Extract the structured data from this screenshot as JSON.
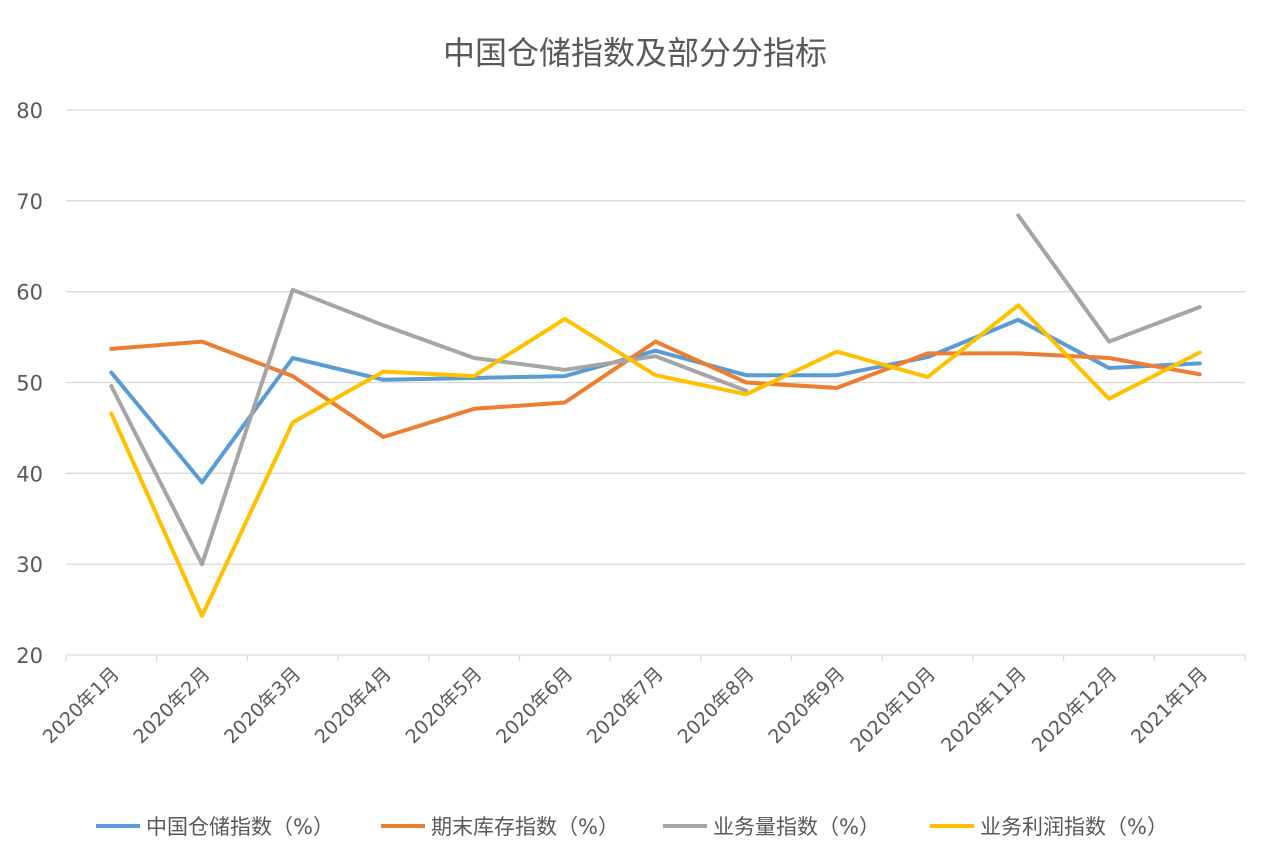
{
  "chart_data": {
    "type": "line",
    "title": "中国仓储指数及部分分指标",
    "xlabel": "",
    "ylabel": "",
    "ylim": [
      20,
      80
    ],
    "yticks": [
      20,
      30,
      40,
      50,
      60,
      70,
      80
    ],
    "grid": true,
    "legend_position": "bottom",
    "categories": [
      "2020年1月",
      "2020年2月",
      "2020年3月",
      "2020年4月",
      "2020年5月",
      "2020年6月",
      "2020年7月",
      "2020年8月",
      "2020年9月",
      "2020年10月",
      "2020年11月",
      "2020年12月",
      "2021年1月"
    ],
    "series": [
      {
        "name": "中国仓储指数（%）",
        "color": "#5B9BD5",
        "values": [
          51.1,
          39.0,
          52.7,
          50.3,
          50.5,
          50.7,
          53.5,
          50.8,
          50.8,
          52.8,
          56.9,
          51.6,
          52.1
        ]
      },
      {
        "name": "期末库存指数（%）",
        "color": "#ED7D31",
        "values": [
          53.7,
          54.5,
          50.7,
          44.0,
          47.1,
          47.8,
          54.5,
          50.0,
          49.4,
          53.2,
          53.2,
          52.7,
          50.9
        ]
      },
      {
        "name": "业务量指数（%）",
        "color": "#A5A5A5",
        "values": [
          49.6,
          30.0,
          60.2,
          56.3,
          52.7,
          51.4,
          52.9,
          49.1,
          null,
          null,
          68.4,
          54.5,
          58.3
        ]
      },
      {
        "name": "业务利润指数（%）",
        "color": "#FFC000",
        "values": [
          46.6,
          24.3,
          45.6,
          51.2,
          50.7,
          57.0,
          50.8,
          48.7,
          53.4,
          50.6,
          58.5,
          48.2,
          53.3
        ]
      }
    ]
  }
}
